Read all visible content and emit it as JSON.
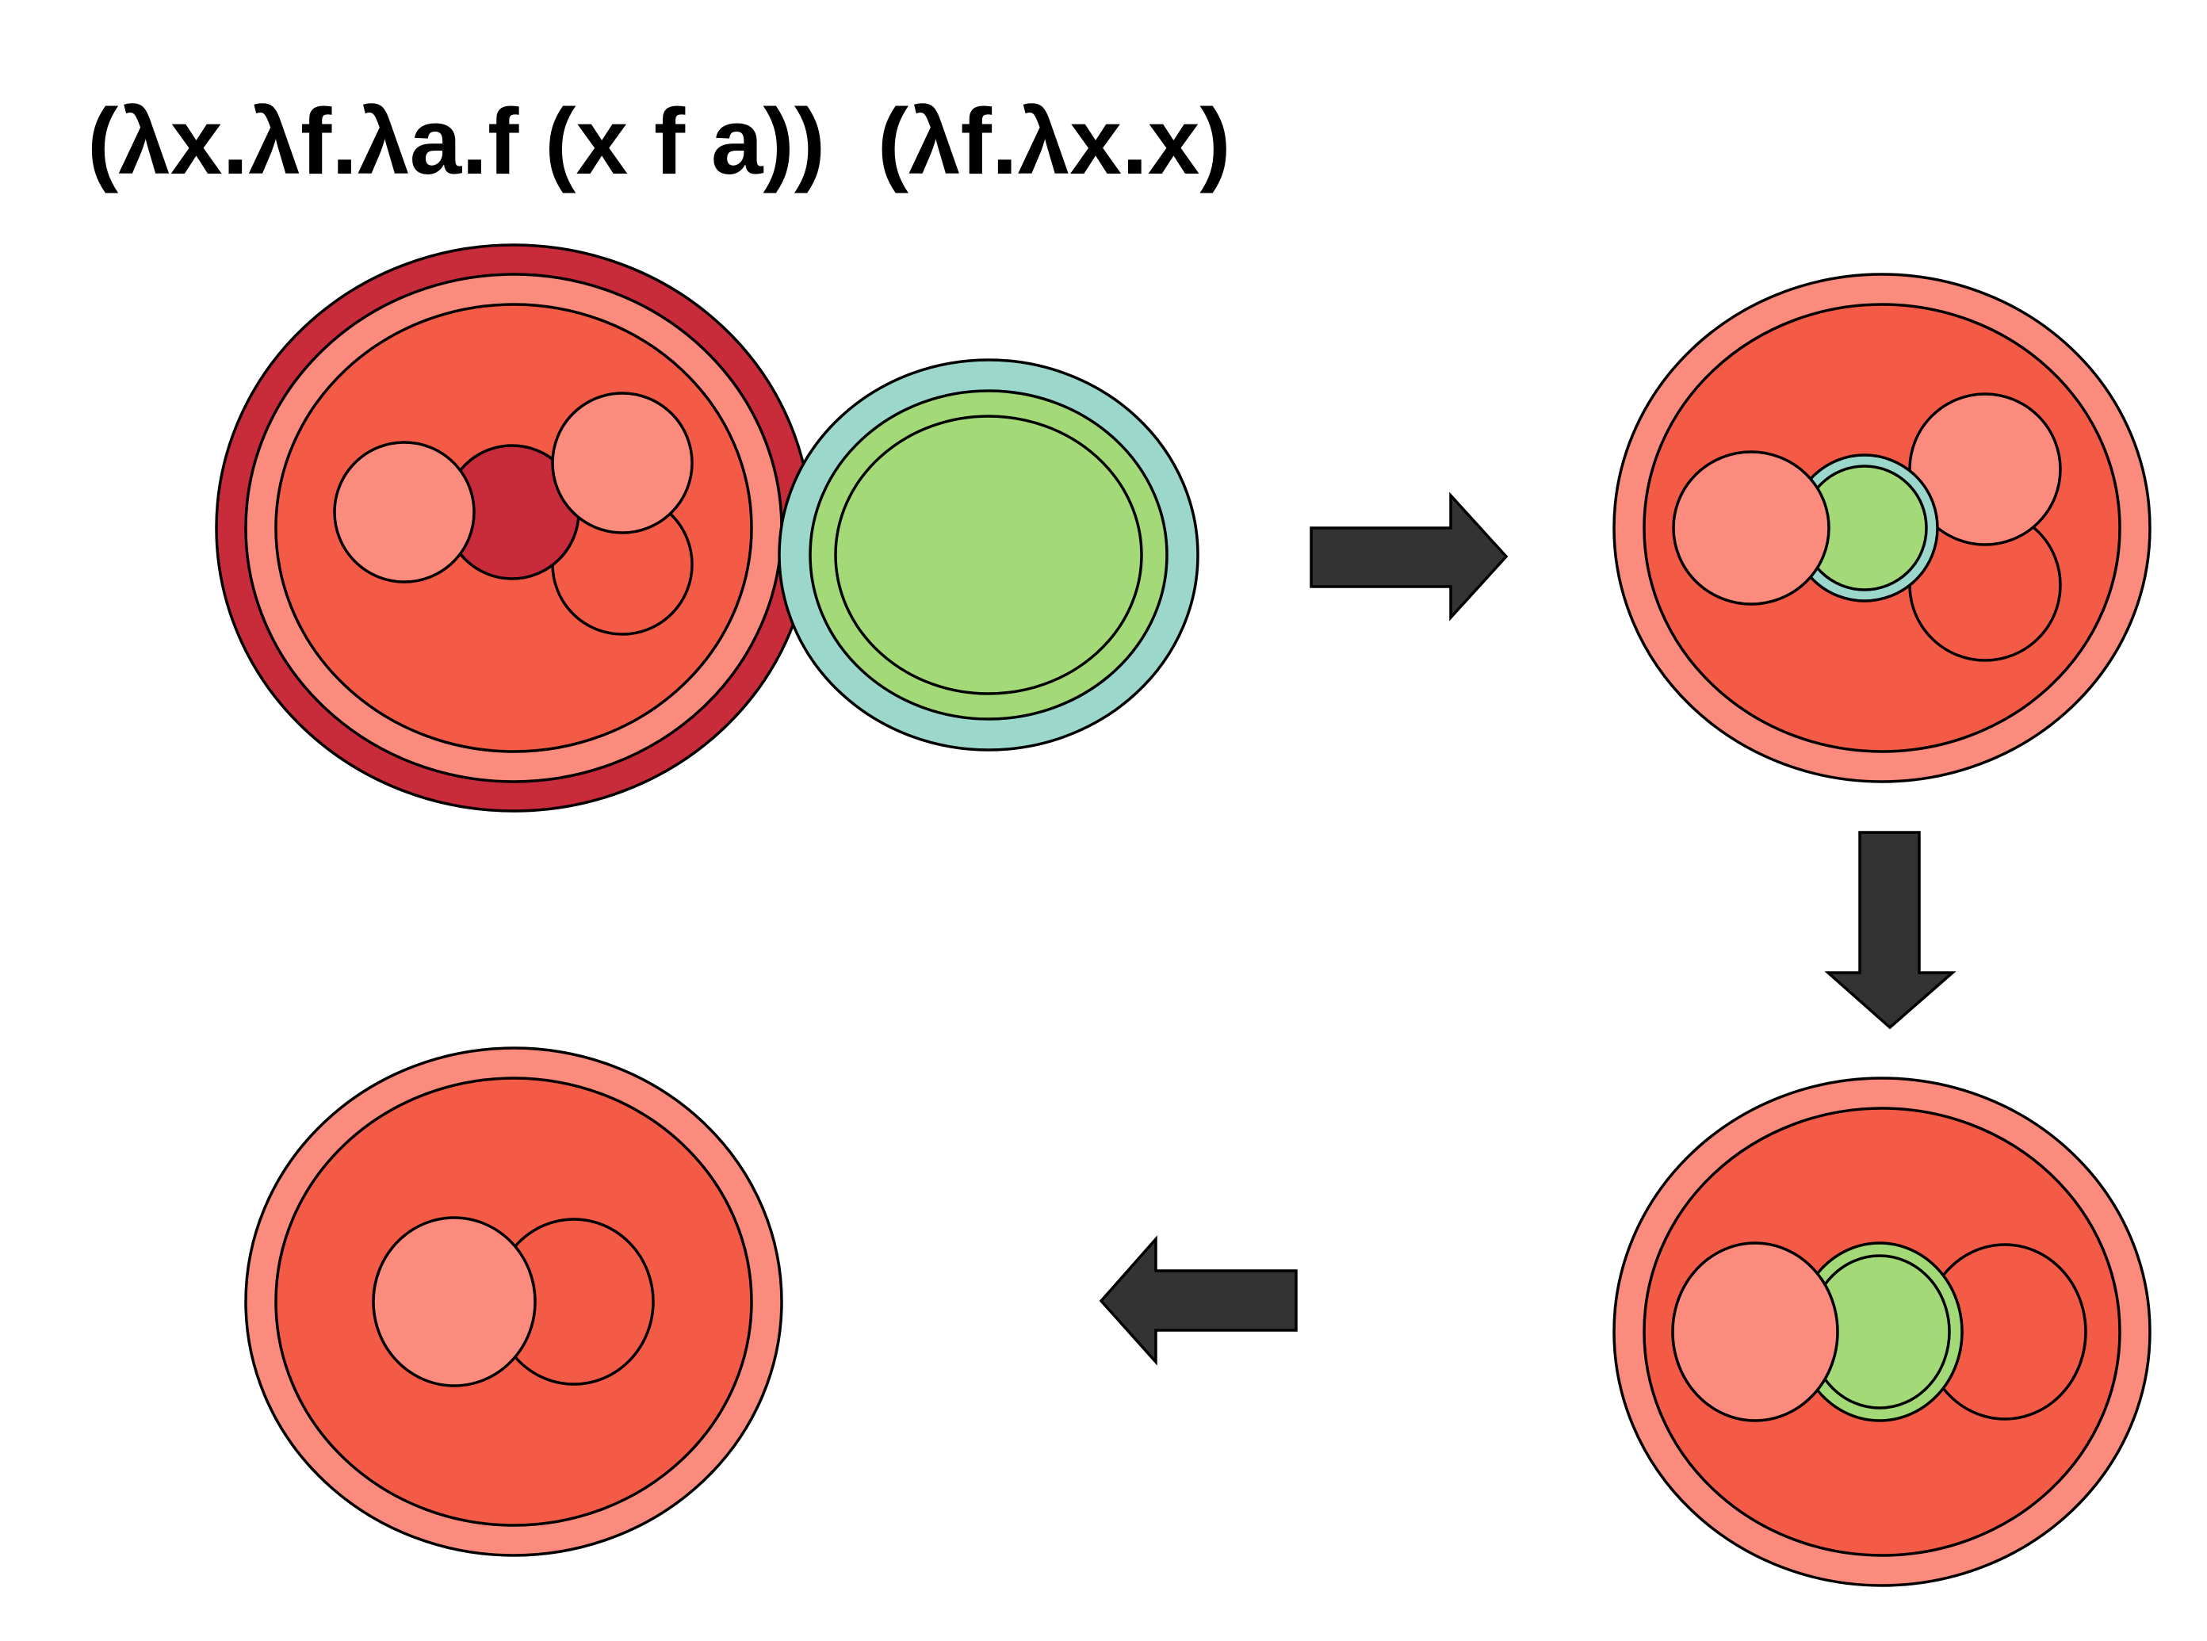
{
  "expression": "(λx.λf.λa.f (x f a))  (λf.λx.x)",
  "colors": {
    "red_outer": "#c82b3a",
    "salmon": "#fb8b7d",
    "coral": "#f45b47",
    "teal": "#9cd7cc",
    "green": "#a3d977",
    "arrow": "#333333",
    "stroke": "#000000"
  },
  "arrows": [
    "right",
    "down",
    "left"
  ]
}
